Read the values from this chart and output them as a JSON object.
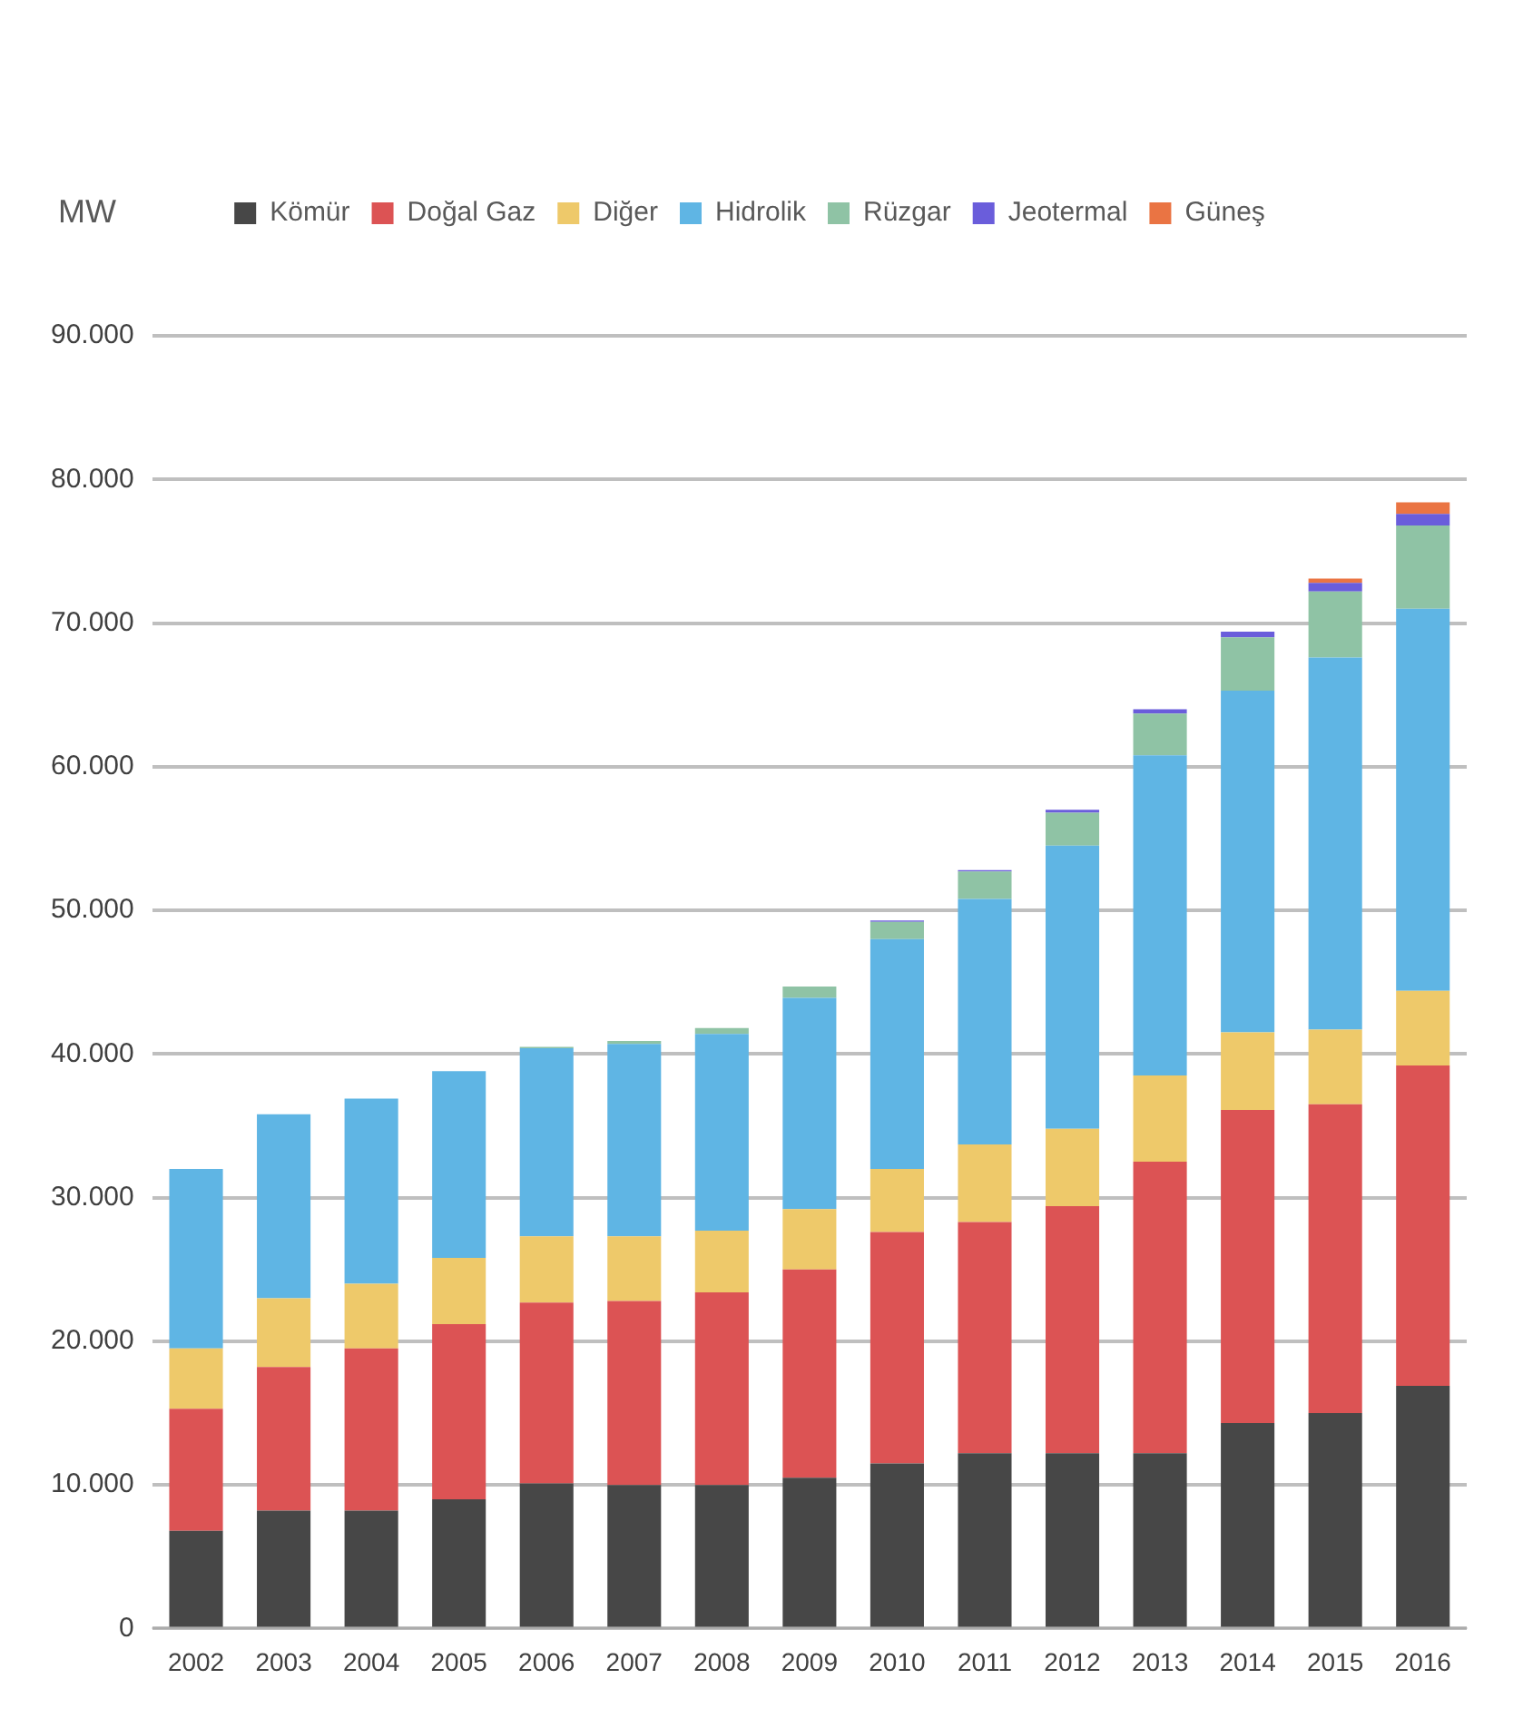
{
  "chart_data": {
    "type": "bar",
    "stacked": true,
    "ylabel": "MW",
    "categories": [
      "2002",
      "2003",
      "2004",
      "2005",
      "2006",
      "2007",
      "2008",
      "2009",
      "2010",
      "2011",
      "2012",
      "2013",
      "2014",
      "2015",
      "2016"
    ],
    "series": [
      {
        "name": "Kömür",
        "color": "#474747",
        "values": [
          6800,
          8200,
          8200,
          9000,
          10100,
          10000,
          10000,
          10500,
          11500,
          12200,
          12200,
          12200,
          14300,
          15000,
          16900
        ]
      },
      {
        "name": "Doğal Gaz",
        "color": "#dc5354",
        "values": [
          8500,
          10000,
          11300,
          12200,
          12600,
          12800,
          13400,
          14500,
          16100,
          16100,
          17200,
          20300,
          21800,
          21500,
          22300
        ]
      },
      {
        "name": "Diğer",
        "color": "#eec96a",
        "values": [
          4200,
          4800,
          4500,
          4600,
          4600,
          4500,
          4300,
          4200,
          4400,
          5400,
          5400,
          6000,
          5400,
          5200,
          5200
        ]
      },
      {
        "name": "Hidrolik",
        "color": "#5fb5e4",
        "values": [
          12500,
          12800,
          12900,
          13000,
          13100,
          13400,
          13700,
          14700,
          16000,
          17100,
          19700,
          22300,
          23800,
          25900,
          26600
        ]
      },
      {
        "name": "Rüzgar",
        "color": "#8fc3a5",
        "values": [
          null,
          null,
          null,
          null,
          100,
          200,
          400,
          800,
          1200,
          1900,
          2300,
          2900,
          3700,
          4600,
          5800
        ]
      },
      {
        "name": "Jeotermal",
        "color": "#6a5ddb",
        "values": [
          null,
          null,
          null,
          null,
          null,
          null,
          null,
          null,
          100,
          100,
          200,
          300,
          400,
          600,
          800
        ]
      },
      {
        "name": "Güneş",
        "color": "#ea7443",
        "values": [
          null,
          null,
          null,
          null,
          null,
          null,
          null,
          null,
          null,
          null,
          null,
          null,
          null,
          300,
          800
        ]
      }
    ],
    "ylim": [
      0,
      90000
    ],
    "yticks": [
      {
        "value": 0,
        "label": "0"
      },
      {
        "value": 10000,
        "label": "10.000"
      },
      {
        "value": 20000,
        "label": "20.000"
      },
      {
        "value": 30000,
        "label": "30.000"
      },
      {
        "value": 40000,
        "label": "40.000"
      },
      {
        "value": 50000,
        "label": "50.000"
      },
      {
        "value": 60000,
        "label": "60.000"
      },
      {
        "value": 70000,
        "label": "70.000"
      },
      {
        "value": 80000,
        "label": "80.000"
      },
      {
        "value": 90000,
        "label": "90.000"
      }
    ],
    "grid": "y",
    "legend": "top"
  }
}
